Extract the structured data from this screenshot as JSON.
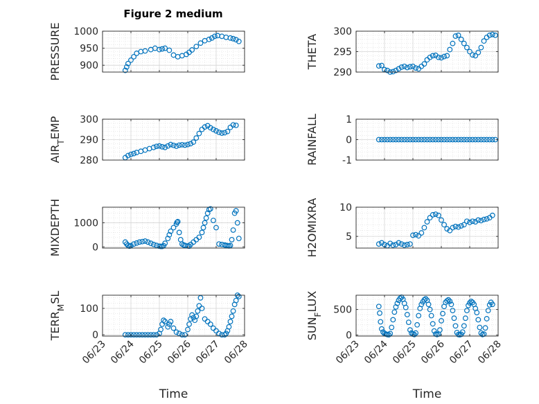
{
  "figure": {
    "title": "Figure 2 medium"
  },
  "colors": {
    "marker": "#0072BD",
    "grid": "#dcdcdc",
    "axis": "#262626"
  },
  "chart_data": [
    {
      "type": "scatter",
      "title": "Figure 2 medium",
      "ylabel": "PRESSURE",
      "ylim": [
        880,
        1000
      ],
      "yticks": [
        "900",
        "950",
        "1000"
      ],
      "ytick_values": [
        900,
        950,
        1000
      ],
      "grid": true,
      "x": [
        0.8,
        0.85,
        0.9,
        1.0,
        1.1,
        1.2,
        1.35,
        1.5,
        1.7,
        1.85,
        2.0,
        2.1,
        2.2,
        2.35,
        2.5,
        2.65,
        2.8,
        2.95,
        3.05,
        3.15,
        3.3,
        3.45,
        3.6,
        3.75,
        3.85,
        3.95,
        4.05,
        4.2,
        4.35,
        4.5,
        4.6,
        4.7,
        4.8
      ],
      "y": [
        885,
        895,
        905,
        915,
        925,
        935,
        940,
        942,
        946,
        950,
        946,
        948,
        950,
        944,
        930,
        925,
        928,
        932,
        938,
        945,
        955,
        965,
        972,
        976,
        980,
        985,
        987,
        985,
        982,
        980,
        978,
        975,
        970
      ]
    },
    {
      "type": "scatter",
      "ylabel": "THETA",
      "ylim": [
        290,
        300
      ],
      "yticks": [
        "290",
        "295",
        "300"
      ],
      "ytick_values": [
        290,
        295,
        300
      ],
      "grid": true,
      "x": [
        0.8,
        0.9,
        1.0,
        1.1,
        1.2,
        1.3,
        1.4,
        1.5,
        1.6,
        1.7,
        1.8,
        1.9,
        2.0,
        2.1,
        2.2,
        2.3,
        2.4,
        2.5,
        2.6,
        2.7,
        2.8,
        2.9,
        3.0,
        3.1,
        3.2,
        3.3,
        3.4,
        3.5,
        3.6,
        3.7,
        3.8,
        3.9,
        4.0,
        4.1,
        4.2,
        4.3,
        4.4,
        4.5,
        4.6,
        4.7,
        4.8,
        4.9
      ],
      "y": [
        291.5,
        291.6,
        290.6,
        290.4,
        290.0,
        290.1,
        290.4,
        290.8,
        291.2,
        291.4,
        291.1,
        291.3,
        291.4,
        291.0,
        290.8,
        291.4,
        292.0,
        293.0,
        293.6,
        294.0,
        294.1,
        293.6,
        293.5,
        293.8,
        294.0,
        295.5,
        297.0,
        298.8,
        299.0,
        298.0,
        297.0,
        296.0,
        295.0,
        294.2,
        294.0,
        294.8,
        296.0,
        297.6,
        298.5,
        299.0,
        299.2,
        299.0
      ]
    },
    {
      "type": "scatter",
      "ylabel": "AIR_TEMP",
      "ylim": [
        280,
        300
      ],
      "yticks": [
        "280",
        "290",
        "300"
      ],
      "ytick_values": [
        280,
        290,
        300
      ],
      "grid": true,
      "x": [
        0.8,
        0.9,
        1.0,
        1.1,
        1.2,
        1.35,
        1.5,
        1.65,
        1.8,
        1.9,
        2.0,
        2.1,
        2.2,
        2.3,
        2.4,
        2.5,
        2.6,
        2.7,
        2.8,
        2.9,
        3.0,
        3.1,
        3.2,
        3.3,
        3.4,
        3.5,
        3.6,
        3.7,
        3.8,
        3.9,
        4.0,
        4.1,
        4.2,
        4.3,
        4.4,
        4.5,
        4.6,
        4.7
      ],
      "y": [
        281.2,
        282.2,
        282.8,
        283.2,
        283.7,
        284.3,
        284.9,
        285.6,
        286.2,
        286.7,
        286.9,
        286.5,
        286.2,
        286.9,
        287.6,
        287.2,
        286.8,
        287.3,
        287.5,
        287.3,
        287.6,
        288.0,
        288.8,
        290.8,
        293.0,
        295.0,
        296.2,
        296.8,
        295.8,
        295.0,
        294.3,
        293.6,
        293.2,
        293.4,
        294.0,
        296.0,
        297.2,
        297.0
      ]
    },
    {
      "type": "scatter",
      "ylabel": "RAINFALL",
      "ylim": [
        -1,
        1
      ],
      "yticks": [
        "-1",
        "0",
        "1"
      ],
      "ytick_values": [
        -1,
        0,
        1
      ],
      "grid": true,
      "x": [
        0.8,
        0.9,
        1.0,
        1.1,
        1.2,
        1.3,
        1.4,
        1.5,
        1.6,
        1.7,
        1.8,
        1.9,
        2.0,
        2.1,
        2.2,
        2.3,
        2.4,
        2.5,
        2.6,
        2.7,
        2.8,
        2.9,
        3.0,
        3.1,
        3.2,
        3.3,
        3.4,
        3.5,
        3.6,
        3.7,
        3.8,
        3.9,
        4.0,
        4.1,
        4.2,
        4.3,
        4.4,
        4.5,
        4.6,
        4.7,
        4.8,
        4.9
      ],
      "y": [
        0,
        0,
        0,
        0,
        0,
        0,
        0,
        0,
        0,
        0,
        0,
        0,
        0,
        0,
        0,
        0,
        0,
        0,
        0,
        0,
        0,
        0,
        0,
        0,
        0,
        0,
        0,
        0,
        0,
        0,
        0,
        0,
        0,
        0,
        0,
        0,
        0,
        0,
        0,
        0,
        0,
        0
      ]
    },
    {
      "type": "scatter",
      "ylabel": "MIXDEPTH",
      "ylim": [
        -50,
        1650
      ],
      "yticks": [
        "0",
        "1000"
      ],
      "ytick_values": [
        0,
        1000
      ],
      "grid": true,
      "x": [
        0.8,
        0.85,
        0.9,
        0.95,
        1.0,
        1.1,
        1.2,
        1.3,
        1.4,
        1.5,
        1.6,
        1.7,
        1.8,
        1.9,
        2.0,
        2.05,
        2.1,
        2.15,
        2.2,
        2.3,
        2.35,
        2.4,
        2.5,
        2.6,
        2.62,
        2.65,
        2.7,
        2.75,
        2.8,
        2.85,
        2.9,
        3.0,
        3.05,
        3.1,
        3.2,
        3.3,
        3.4,
        3.5,
        3.55,
        3.6,
        3.65,
        3.7,
        3.75,
        3.8,
        3.9,
        4.0,
        4.1,
        4.2,
        4.3,
        4.35,
        4.4,
        4.45,
        4.5,
        4.55,
        4.6,
        4.65,
        4.7,
        4.75,
        4.8
      ],
      "y": [
        200,
        120,
        60,
        30,
        50,
        120,
        160,
        200,
        220,
        240,
        200,
        150,
        100,
        60,
        30,
        20,
        20,
        50,
        150,
        350,
        500,
        650,
        800,
        950,
        1020,
        1050,
        600,
        300,
        120,
        80,
        60,
        40,
        30,
        100,
        200,
        300,
        400,
        600,
        800,
        1000,
        1200,
        1400,
        1550,
        1580,
        1100,
        800,
        120,
        100,
        80,
        60,
        50,
        40,
        60,
        300,
        700,
        1400,
        1500,
        1000,
        350
      ]
    },
    {
      "type": "scatter",
      "ylabel": "H2OMIXRA",
      "ylim": [
        3,
        10
      ],
      "yticks": [
        "5",
        "10"
      ],
      "ytick_values": [
        5,
        10
      ],
      "grid": true,
      "x": [
        0.8,
        0.9,
        1.0,
        1.1,
        1.2,
        1.3,
        1.4,
        1.5,
        1.6,
        1.7,
        1.8,
        1.9,
        2.0,
        2.1,
        2.2,
        2.3,
        2.4,
        2.5,
        2.6,
        2.7,
        2.8,
        2.9,
        3.0,
        3.1,
        3.2,
        3.3,
        3.4,
        3.5,
        3.6,
        3.7,
        3.8,
        3.9,
        4.0,
        4.1,
        4.2,
        4.3,
        4.4,
        4.5,
        4.6,
        4.7,
        4.8
      ],
      "y": [
        3.7,
        3.9,
        3.6,
        3.4,
        3.8,
        3.5,
        3.6,
        3.9,
        3.7,
        3.5,
        3.6,
        3.7,
        5.2,
        5.3,
        5.1,
        5.6,
        6.5,
        7.5,
        8.2,
        8.7,
        8.8,
        8.6,
        7.8,
        7.0,
        6.3,
        6.0,
        6.5,
        6.7,
        6.6,
        6.8,
        7.0,
        7.6,
        7.4,
        7.6,
        7.5,
        7.8,
        7.7,
        7.9,
        8.0,
        8.2,
        8.6
      ]
    },
    {
      "type": "scatter",
      "ylabel": "TERR_MSL",
      "ylim": [
        -5,
        150
      ],
      "yticks": [
        "0",
        "100"
      ],
      "ytick_values": [
        0,
        100
      ],
      "grid": true,
      "x": [
        0.8,
        0.9,
        1.0,
        1.1,
        1.2,
        1.3,
        1.4,
        1.5,
        1.6,
        1.7,
        1.8,
        1.9,
        2.0,
        2.05,
        2.1,
        2.15,
        2.2,
        2.3,
        2.35,
        2.4,
        2.5,
        2.6,
        2.7,
        2.8,
        2.9,
        3.0,
        3.05,
        3.1,
        3.15,
        3.2,
        3.25,
        3.3,
        3.35,
        3.4,
        3.45,
        3.5,
        3.6,
        3.7,
        3.8,
        3.9,
        4.0,
        4.1,
        4.2,
        4.3,
        4.35,
        4.4,
        4.45,
        4.5,
        4.55,
        4.6,
        4.65,
        4.7,
        4.75,
        4.8
      ],
      "y": [
        0,
        0,
        0,
        0,
        0,
        0,
        0,
        0,
        0,
        0,
        0,
        0,
        5,
        20,
        40,
        55,
        50,
        30,
        40,
        50,
        25,
        10,
        5,
        0,
        0,
        20,
        40,
        60,
        75,
        65,
        55,
        70,
        90,
        110,
        140,
        100,
        60,
        50,
        40,
        25,
        15,
        5,
        0,
        0,
        5,
        15,
        30,
        50,
        70,
        90,
        115,
        130,
        150,
        145
      ]
    },
    {
      "type": "scatter",
      "ylabel": "SUN_FLUX",
      "ylim": [
        -20,
        780
      ],
      "yticks": [
        "0",
        "500"
      ],
      "ytick_values": [
        0,
        500
      ],
      "grid": true,
      "x": [
        0.8,
        0.83,
        0.86,
        0.9,
        0.95,
        1.0,
        1.05,
        1.1,
        1.15,
        1.2,
        1.25,
        1.3,
        1.35,
        1.4,
        1.45,
        1.5,
        1.55,
        1.6,
        1.65,
        1.7,
        1.75,
        1.8,
        1.85,
        1.9,
        1.95,
        2.0,
        2.05,
        2.1,
        2.15,
        2.2,
        2.25,
        2.3,
        2.35,
        2.4,
        2.45,
        2.5,
        2.55,
        2.6,
        2.65,
        2.7,
        2.75,
        2.8,
        2.85,
        2.9,
        2.95,
        3.0,
        3.05,
        3.1,
        3.15,
        3.2,
        3.25,
        3.3,
        3.35,
        3.4,
        3.45,
        3.5,
        3.55,
        3.6,
        3.65,
        3.7,
        3.75,
        3.8,
        3.85,
        3.9,
        3.95,
        4.0,
        4.05,
        4.1,
        4.15,
        4.2,
        4.25,
        4.3,
        4.35,
        4.4,
        4.45,
        4.5,
        4.55,
        4.6,
        4.65,
        4.7,
        4.75,
        4.8
      ],
      "y": [
        560,
        430,
        260,
        120,
        60,
        30,
        20,
        10,
        5,
        30,
        150,
        300,
        450,
        550,
        620,
        680,
        720,
        740,
        700,
        620,
        540,
        400,
        250,
        100,
        40,
        20,
        10,
        40,
        200,
        380,
        520,
        600,
        650,
        690,
        710,
        680,
        600,
        500,
        380,
        220,
        80,
        20,
        10,
        20,
        100,
        280,
        420,
        560,
        640,
        670,
        690,
        660,
        600,
        480,
        330,
        180,
        50,
        10,
        5,
        15,
        60,
        180,
        330,
        480,
        580,
        630,
        660,
        640,
        600,
        520,
        440,
        300,
        150,
        40,
        10,
        20,
        140,
        320,
        480,
        590,
        640,
        600
      ]
    }
  ],
  "x_axis": {
    "xlim": [
      0,
      5
    ],
    "tick_values": [
      0,
      1,
      2,
      3,
      4,
      5
    ],
    "tick_labels": [
      "06/23",
      "06/24",
      "06/25",
      "06/26",
      "06/27",
      "06/28"
    ],
    "xlabel": "Time"
  }
}
